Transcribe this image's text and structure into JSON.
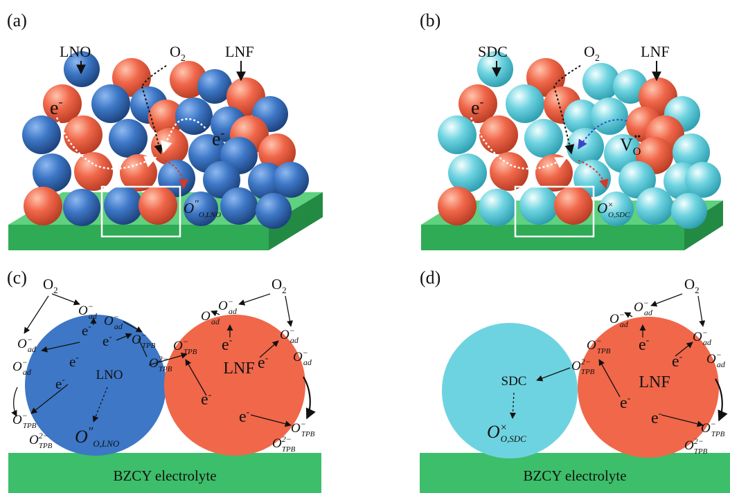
{
  "panels": {
    "a": {
      "label": "(a)",
      "materials": [
        "LNO",
        "LNF"
      ],
      "gas": "O",
      "gas_sub": "2",
      "electron_upper": "e",
      "electron_lower": "e",
      "electron_sup": "-",
      "species": {
        "main": "O",
        "prime": "″",
        "sub": "O,LNO"
      }
    },
    "b": {
      "label": "(b)",
      "materials": [
        "SDC",
        "LNF"
      ],
      "gas": "O",
      "gas_sub": "2",
      "electron": "e",
      "electron_sup": "-",
      "vacancy": {
        "main": "V",
        "sub": "O",
        "sup": "••"
      },
      "species": {
        "main": "O",
        "sup": "×",
        "sub": "O,SDC"
      }
    },
    "c": {
      "label": "(c)",
      "gas": "O",
      "gas_sub": "2",
      "electron": "e",
      "electron_sup": "-",
      "particles": [
        "LNO",
        "LNF"
      ],
      "adsorbed": {
        "main": "O",
        "sub": "ad",
        "sup": "−"
      },
      "tpb1": {
        "main": "O",
        "sub": "TPB",
        "sup": "−"
      },
      "tpb2": {
        "main": "O",
        "sub": "TPB",
        "sup": "2−"
      },
      "lattice": {
        "main": "O",
        "prime": "″",
        "sub": "O,LNO"
      },
      "substrate": "BZCY electrolyte"
    },
    "d": {
      "label": "(d)",
      "gas": "O",
      "gas_sub": "2",
      "electron": "e",
      "electron_sup": "-",
      "particles": [
        "SDC",
        "LNF"
      ],
      "adsorbed": {
        "main": "O",
        "sub": "ad",
        "sup": "−"
      },
      "tpb1": {
        "main": "O",
        "sub": "TPB",
        "sup": "−"
      },
      "tpb2": {
        "main": "O",
        "sub": "TPB",
        "sup": "2−"
      },
      "lattice": {
        "main": "O",
        "sup": "×",
        "sub": "O,SDC"
      },
      "substrate": "BZCY electrolyte"
    }
  },
  "colors": {
    "lno": "#3d77c6",
    "lnf": "#f0674a",
    "sdc": "#6ed3e0",
    "electrolyte": "#3dbe6a",
    "frame": "#ffffff"
  }
}
